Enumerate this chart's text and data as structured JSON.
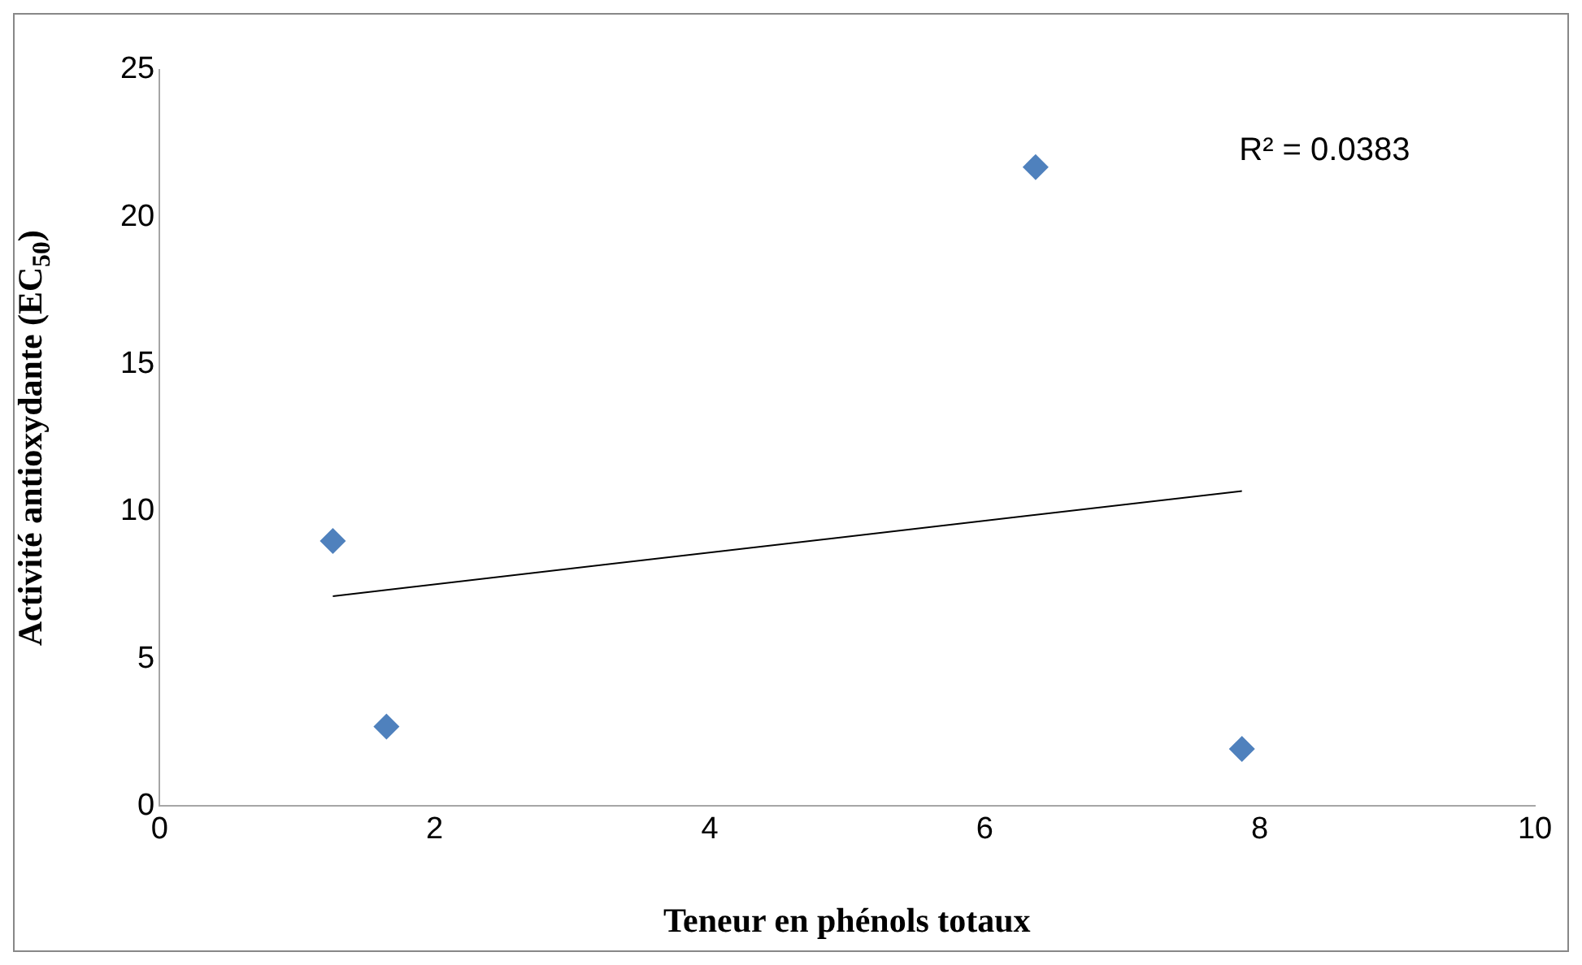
{
  "chart_data": {
    "type": "scatter",
    "xlabel": "Teneur en phénols totaux",
    "ylabel": "Activité antioxydante (EC$_{50}$)",
    "xlim": [
      0,
      10
    ],
    "xticks": [
      0,
      2,
      4,
      6,
      8,
      10
    ],
    "ylim": [
      0,
      25
    ],
    "yticks": [
      0,
      5,
      10,
      15,
      20,
      25
    ],
    "grid": false,
    "legend": false,
    "marker": "diamond",
    "annotations": [
      "R² = 0.0383"
    ],
    "series": [
      {
        "color": "#4f81bd",
        "x": [
          1.26,
          1.65,
          6.37,
          7.87
        ],
        "values": [
          9.0,
          2.7,
          21.7,
          1.94
        ]
      },
      {
        "type": "line",
        "color": "#000000",
        "marker": "none",
        "x": [
          1.26,
          7.87
        ],
        "values": [
          7.13,
          10.7
        ]
      }
    ]
  }
}
